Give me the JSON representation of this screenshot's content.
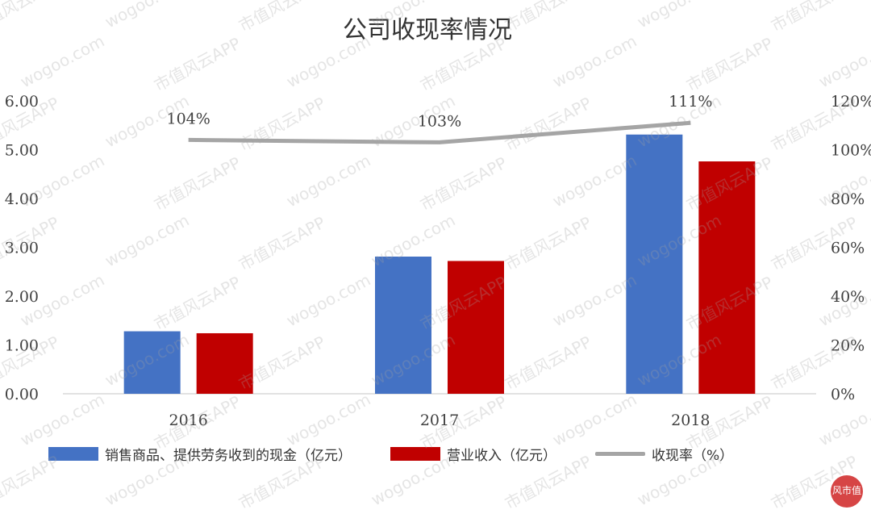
{
  "chart_data": {
    "type": "bar",
    "title": "公司收现率情况",
    "categories": [
      "2016",
      "2017",
      "2018"
    ],
    "series": [
      {
        "name": "销售商品、提供劳务收到的现金（亿元）",
        "type": "bar",
        "axis": "left",
        "color": "#4472c4",
        "values": [
          1.28,
          2.81,
          5.31
        ]
      },
      {
        "name": "营业收入（亿元）",
        "type": "bar",
        "axis": "left",
        "color": "#c00000",
        "values": [
          1.24,
          2.72,
          4.76
        ]
      },
      {
        "name": "收现率（%）",
        "type": "line",
        "axis": "right",
        "color": "#a5a5a5",
        "values": [
          104,
          103,
          111
        ],
        "labels": [
          "104%",
          "103%",
          "111%"
        ]
      }
    ],
    "y_left": {
      "ylim": [
        0,
        6
      ],
      "ticks": [
        "0.00",
        "1.00",
        "2.00",
        "3.00",
        "4.00",
        "5.00",
        "6.00"
      ]
    },
    "y_right": {
      "ylim": [
        0,
        120
      ],
      "ticks": [
        "0%",
        "20%",
        "40%",
        "60%",
        "80%",
        "100%",
        "120%"
      ]
    },
    "grid": false,
    "legend": "bottom"
  },
  "watermark": {
    "text": "市值风云APP",
    "url_text": "wogoo.com"
  },
  "badge": {
    "text": "风市值"
  }
}
